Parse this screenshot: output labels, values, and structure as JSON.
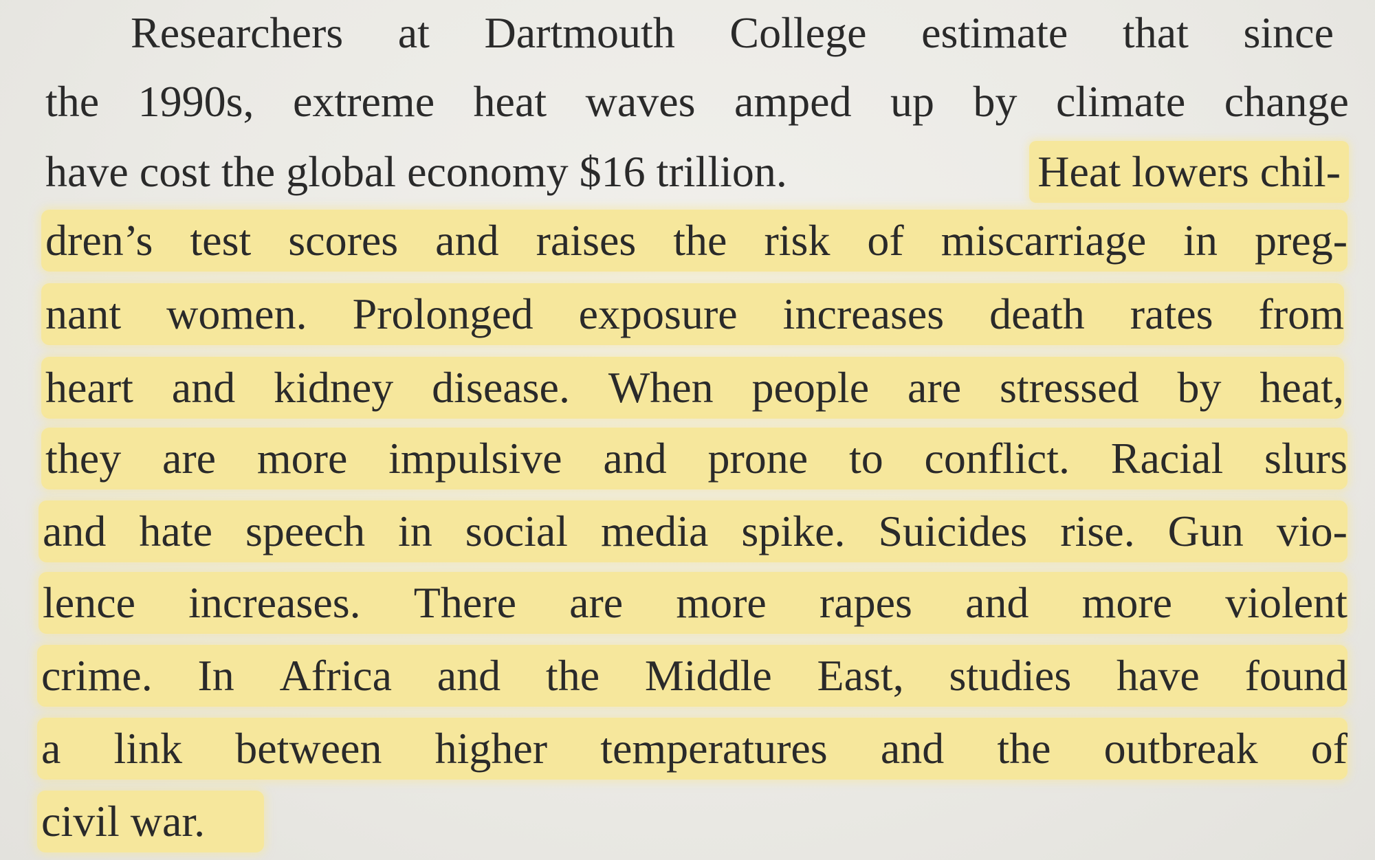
{
  "page": {
    "highlight_color": "#f6e79c",
    "paper_color": "#ecebe6",
    "text_color": "#2a2a2a"
  },
  "lines": [
    "Researchers at Dartmouth College estimate that since",
    "the 1990s, extreme heat waves amped up by climate change",
    "have cost the global economy $16 trillion.",
    "Heat lowers chil-",
    "dren’s test scores and raises the risk of miscarriage in preg-",
    "nant women. Prolonged exposure increases death rates from",
    "heart and kidney disease. When people are stressed by heat,",
    "they are more impulsive and prone to conflict. Racial slurs",
    "and hate speech in social media spike. Suicides rise. Gun vio-",
    "lence increases. There are more rapes and more violent",
    "crime. In Africa and the Middle East, studies have found",
    "a link between higher temperatures and the outbreak of",
    "civil war."
  ]
}
